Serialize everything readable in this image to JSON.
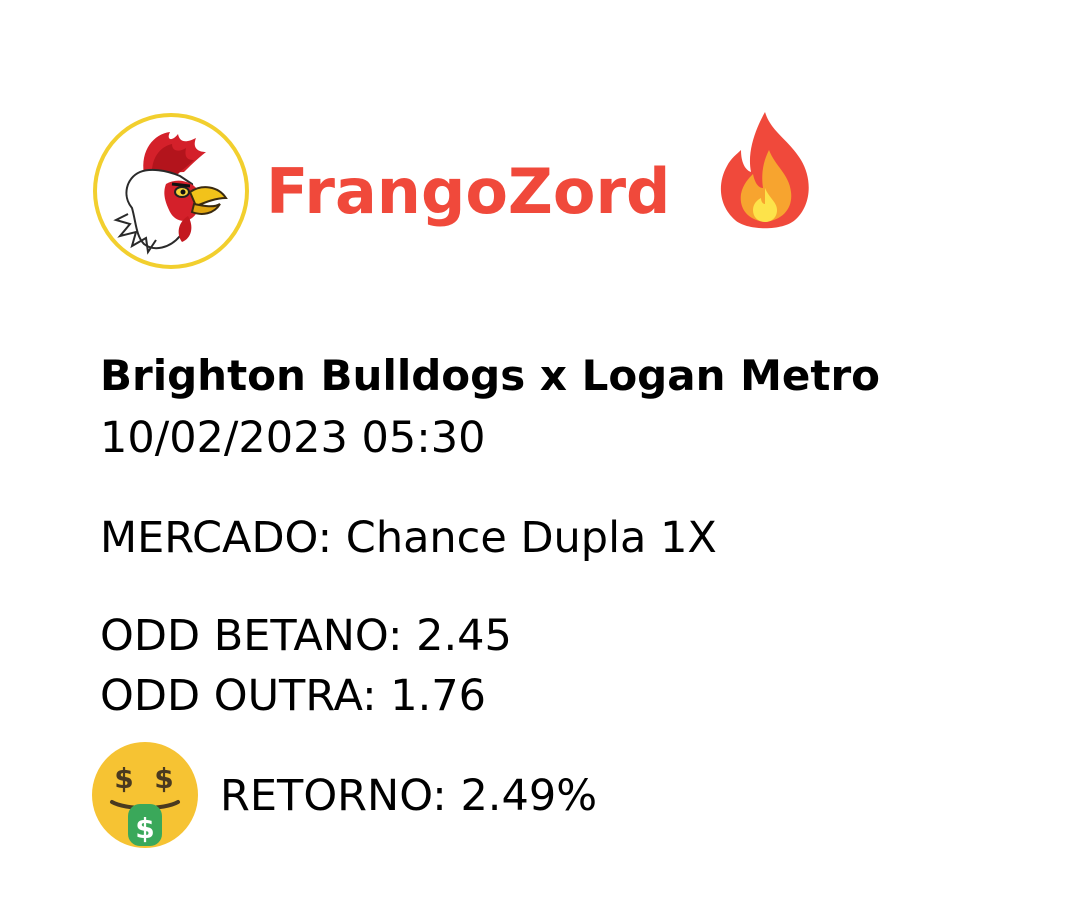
{
  "brand": {
    "name": "FrangoZord",
    "logo_icon": "rooster-logo-icon",
    "fire_icon": "fire-icon",
    "accent_color": "#f0493b",
    "badge_ring_color": "#f2cf2e"
  },
  "match": {
    "title": "Brighton Bulldogs x Logan Metro",
    "datetime": "10/02/2023 05:30"
  },
  "market": {
    "text": "MERCADO: Chance Dupla 1X"
  },
  "odds": {
    "betano": "ODD BETANO: 2.45",
    "outra": "ODD OUTRA: 1.76"
  },
  "return": {
    "icon": "money-mouth-face-icon",
    "text": "RETORNO: 2.49%"
  }
}
